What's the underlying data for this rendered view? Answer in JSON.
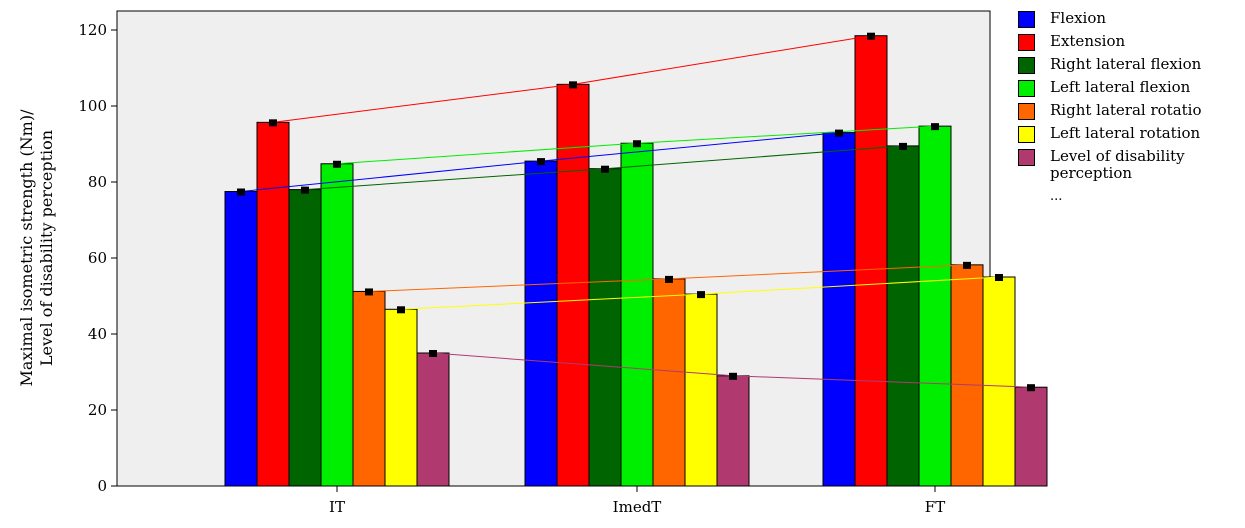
{
  "chart_data": {
    "type": "bar",
    "categories": [
      "IT",
      "ImedT",
      "FT"
    ],
    "ylabel": [
      "Maximal isometric strength (Nm)/",
      "Level of disability perception"
    ],
    "ylim": [
      0,
      125
    ],
    "yticks": [
      0,
      20,
      40,
      60,
      80,
      100,
      120
    ],
    "grid": false,
    "plot_background": "#efefef",
    "legend_position": "right",
    "legend_overflow": "...",
    "series": [
      {
        "name": "Flexion",
        "color": "#0000ff",
        "values": [
          77.5,
          85.5,
          93
        ]
      },
      {
        "name": "Extension",
        "color": "#ff0000",
        "values": [
          95.7,
          105.7,
          118.5
        ]
      },
      {
        "name": "Right lateral flexion",
        "color": "#006400",
        "values": [
          78,
          83.5,
          89.5
        ]
      },
      {
        "name": "Left lateral flexion",
        "color": "#00ee00",
        "values": [
          84.8,
          90.2,
          94.7
        ]
      },
      {
        "name": "Right lateral rotatio",
        "color": "#ff6600",
        "values": [
          51.2,
          54.5,
          58.2
        ]
      },
      {
        "name": "Left lateral rotation",
        "color": "#ffff00",
        "values": [
          46.5,
          50.5,
          55
        ]
      },
      {
        "name": "Level of disability perception",
        "color": "#b03a70",
        "values": [
          35,
          29,
          26
        ]
      }
    ]
  }
}
